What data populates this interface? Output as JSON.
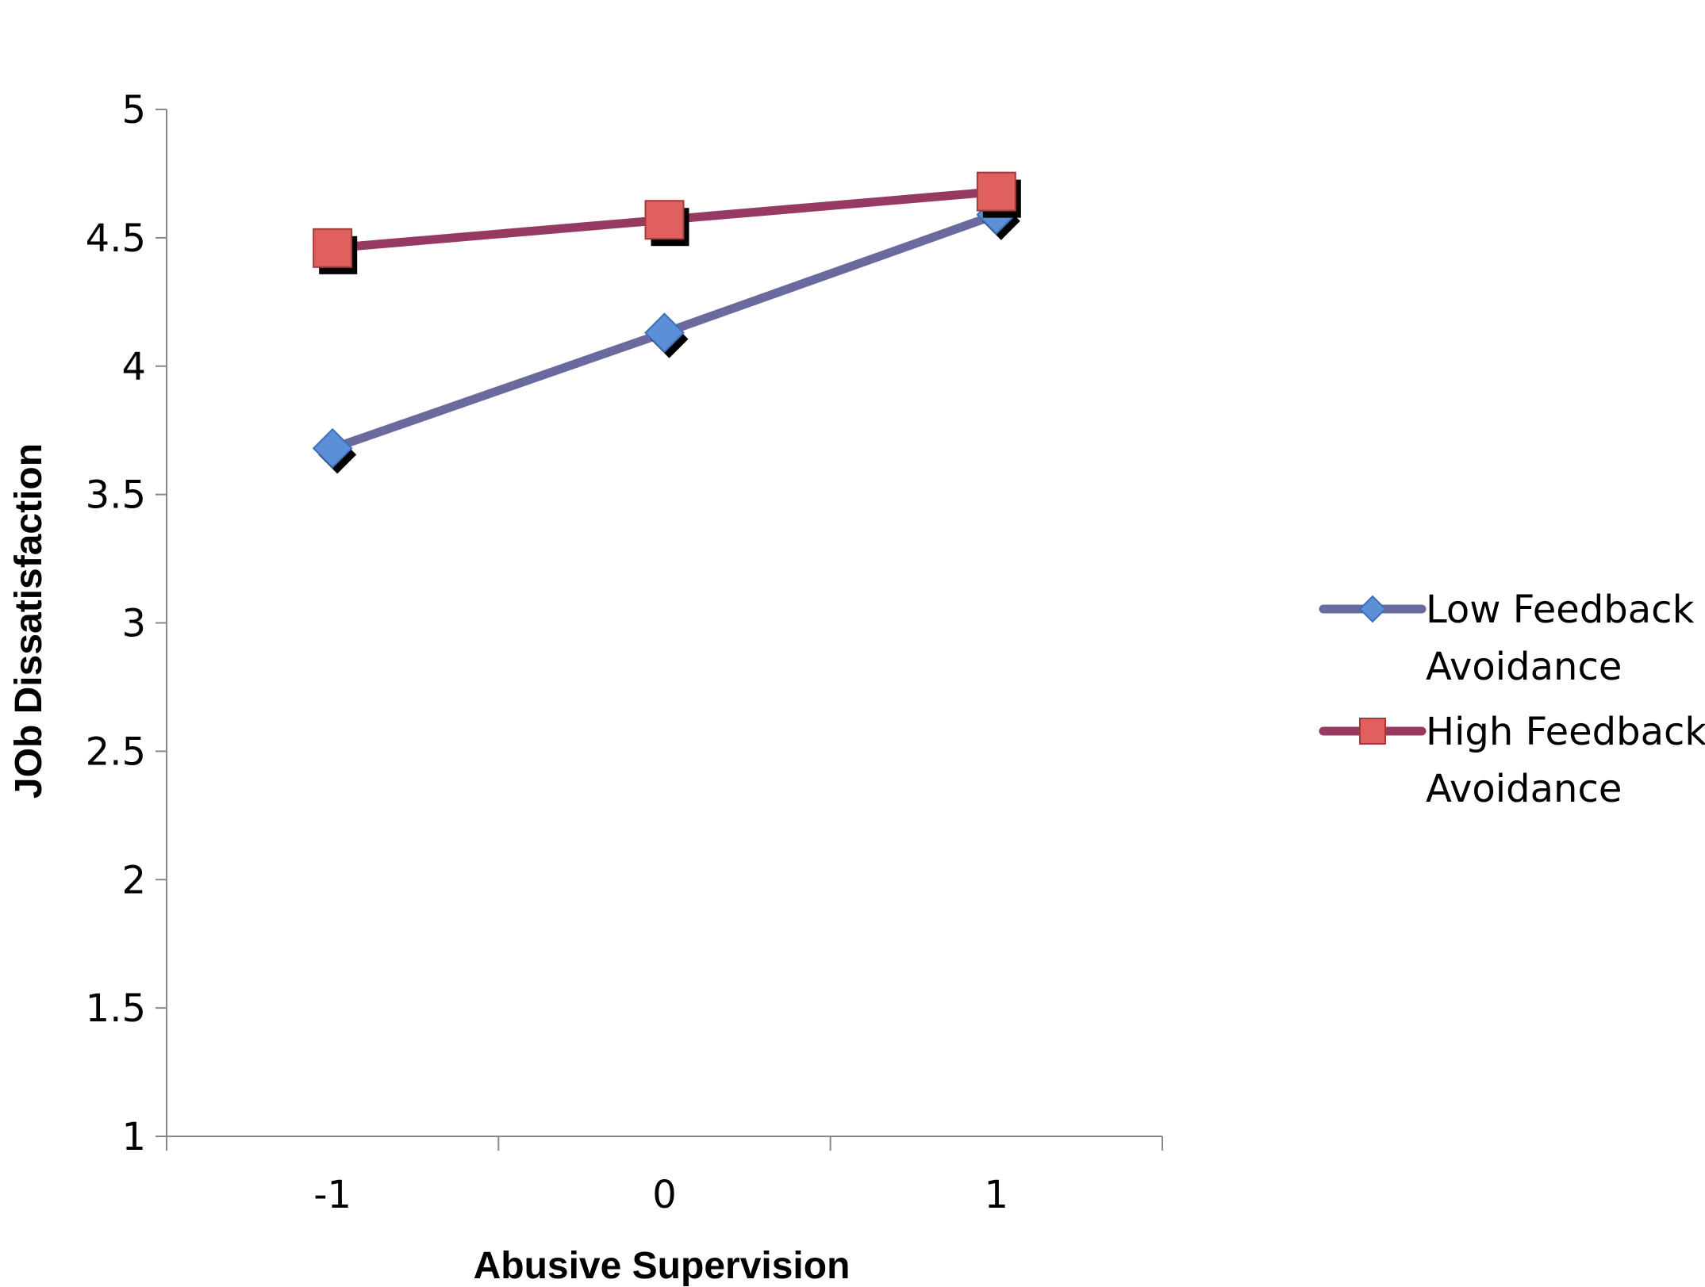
{
  "chart_data": {
    "type": "line",
    "title": "",
    "xlabel": "Abusive Supervision",
    "ylabel": "JOb Dissatisfaction",
    "categories": [
      "-1",
      "0",
      "1"
    ],
    "x_values": [
      -1,
      0,
      1
    ],
    "xlim": [
      -1.5,
      1.5
    ],
    "ylim": [
      1,
      5
    ],
    "yticks": [
      "1",
      "1.5",
      "2",
      "2.5",
      "3",
      "3.5",
      "4",
      "4.5",
      "5"
    ],
    "ytick_values": [
      1,
      1.5,
      2,
      2.5,
      3,
      3.5,
      4,
      4.5,
      5
    ],
    "grid": false,
    "legend_position": "right",
    "series": [
      {
        "name": "Low Feedback Avoidance",
        "legend_lines": [
          "Low Feedback",
          "Avoidance"
        ],
        "values": [
          3.68,
          4.13,
          4.59
        ],
        "color": "#6a6a9e",
        "marker": "diamond",
        "marker_color": "#5b8fd8"
      },
      {
        "name": "High Feedback Avoidance",
        "legend_lines": [
          "High Feedback",
          "Avoidance"
        ],
        "values": [
          4.46,
          4.57,
          4.68
        ],
        "color": "#963a62",
        "marker": "square",
        "marker_color": "#e0605f"
      }
    ]
  }
}
